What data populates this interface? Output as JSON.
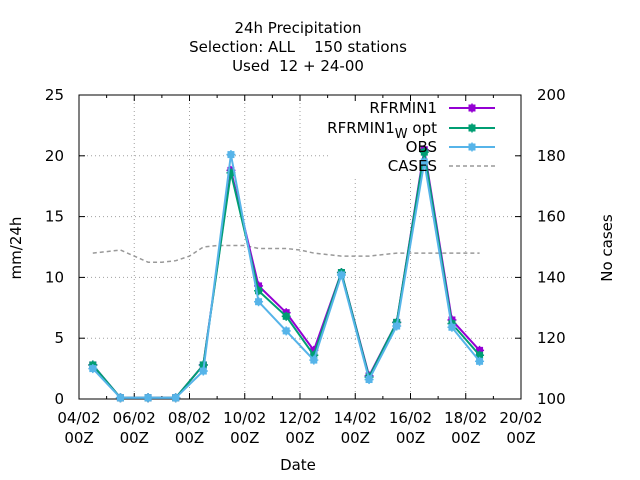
{
  "chart_data": {
    "type": "line",
    "title": [
      "24h Precipitation",
      "Selection: ALL    150 stations",
      "Used  12 + 24-00"
    ],
    "xlabel": "Date",
    "ylabel": "mm/24h",
    "y2label": "No cases",
    "x_ticks": [
      {
        "line1": "04/02",
        "line2": "00Z"
      },
      {
        "line1": "06/02",
        "line2": "00Z"
      },
      {
        "line1": "08/02",
        "line2": "00Z"
      },
      {
        "line1": "10/02",
        "line2": "00Z"
      },
      {
        "line1": "12/02",
        "line2": "00Z"
      },
      {
        "line1": "14/02",
        "line2": "00Z"
      },
      {
        "line1": "16/02",
        "line2": "00Z"
      },
      {
        "line1": "18/02",
        "line2": "00Z"
      },
      {
        "line1": "20/02",
        "line2": "00Z"
      }
    ],
    "xlim_days": [
      0,
      16
    ],
    "ylim": [
      0,
      25
    ],
    "y_ticks": [
      0,
      5,
      10,
      15,
      20,
      25
    ],
    "y2lim": [
      100,
      200
    ],
    "y2_ticks": [
      100,
      120,
      140,
      160,
      180,
      200
    ],
    "grid": true,
    "legend_placement": "top-right",
    "x_days": [
      0.5,
      1.5,
      2.5,
      3.5,
      4.5,
      5.5,
      6.5,
      7.5,
      8.5,
      9.5,
      10.5,
      11.5,
      12.5,
      13.5,
      14.5
    ],
    "series": [
      {
        "name": "RFRMIN1",
        "color": "#9400d3",
        "marker": "plus-square",
        "values": [
          2.8,
          0.1,
          0.1,
          0.1,
          2.8,
          18.8,
          9.3,
          7.1,
          4.0,
          10.4,
          1.9,
          6.3,
          20.5,
          6.5,
          4.0
        ]
      },
      {
        "name": "RFRMIN1_W opt",
        "label_main": "RFRMIN1",
        "label_sub": "W",
        "label_tail": "opt",
        "color": "#009e73",
        "marker": "plus-square",
        "values": [
          2.8,
          0.1,
          0.1,
          0.1,
          2.8,
          18.6,
          8.9,
          6.8,
          3.6,
          10.4,
          1.8,
          6.3,
          20.3,
          6.2,
          3.6
        ]
      },
      {
        "name": "OBS",
        "color": "#56b4e9",
        "marker": "plus-square",
        "values": [
          2.5,
          0.1,
          0.1,
          0.1,
          2.3,
          20.1,
          8.0,
          5.6,
          3.2,
          10.2,
          1.6,
          6.0,
          19.5,
          5.9,
          3.1
        ]
      },
      {
        "name": "CASES",
        "color": "#999999",
        "axis": "y2",
        "dashed": true,
        "x_days": [
          0.5,
          1,
          1.5,
          2,
          2.5,
          3,
          3.5,
          4,
          4.5,
          5,
          5.5,
          6,
          6.5,
          7,
          7.5,
          8,
          8.5,
          9,
          9.5,
          10,
          10.5,
          11,
          11.5,
          12,
          12.5,
          13,
          13.5,
          14,
          14.5
        ],
        "values": [
          148,
          148.5,
          149,
          147,
          145,
          145,
          145.5,
          147,
          150,
          150.5,
          150.5,
          150.5,
          149.5,
          149.5,
          149.5,
          149,
          148,
          147.5,
          147,
          147,
          147,
          147.5,
          148,
          148,
          148,
          148,
          148,
          148,
          148
        ]
      }
    ]
  }
}
